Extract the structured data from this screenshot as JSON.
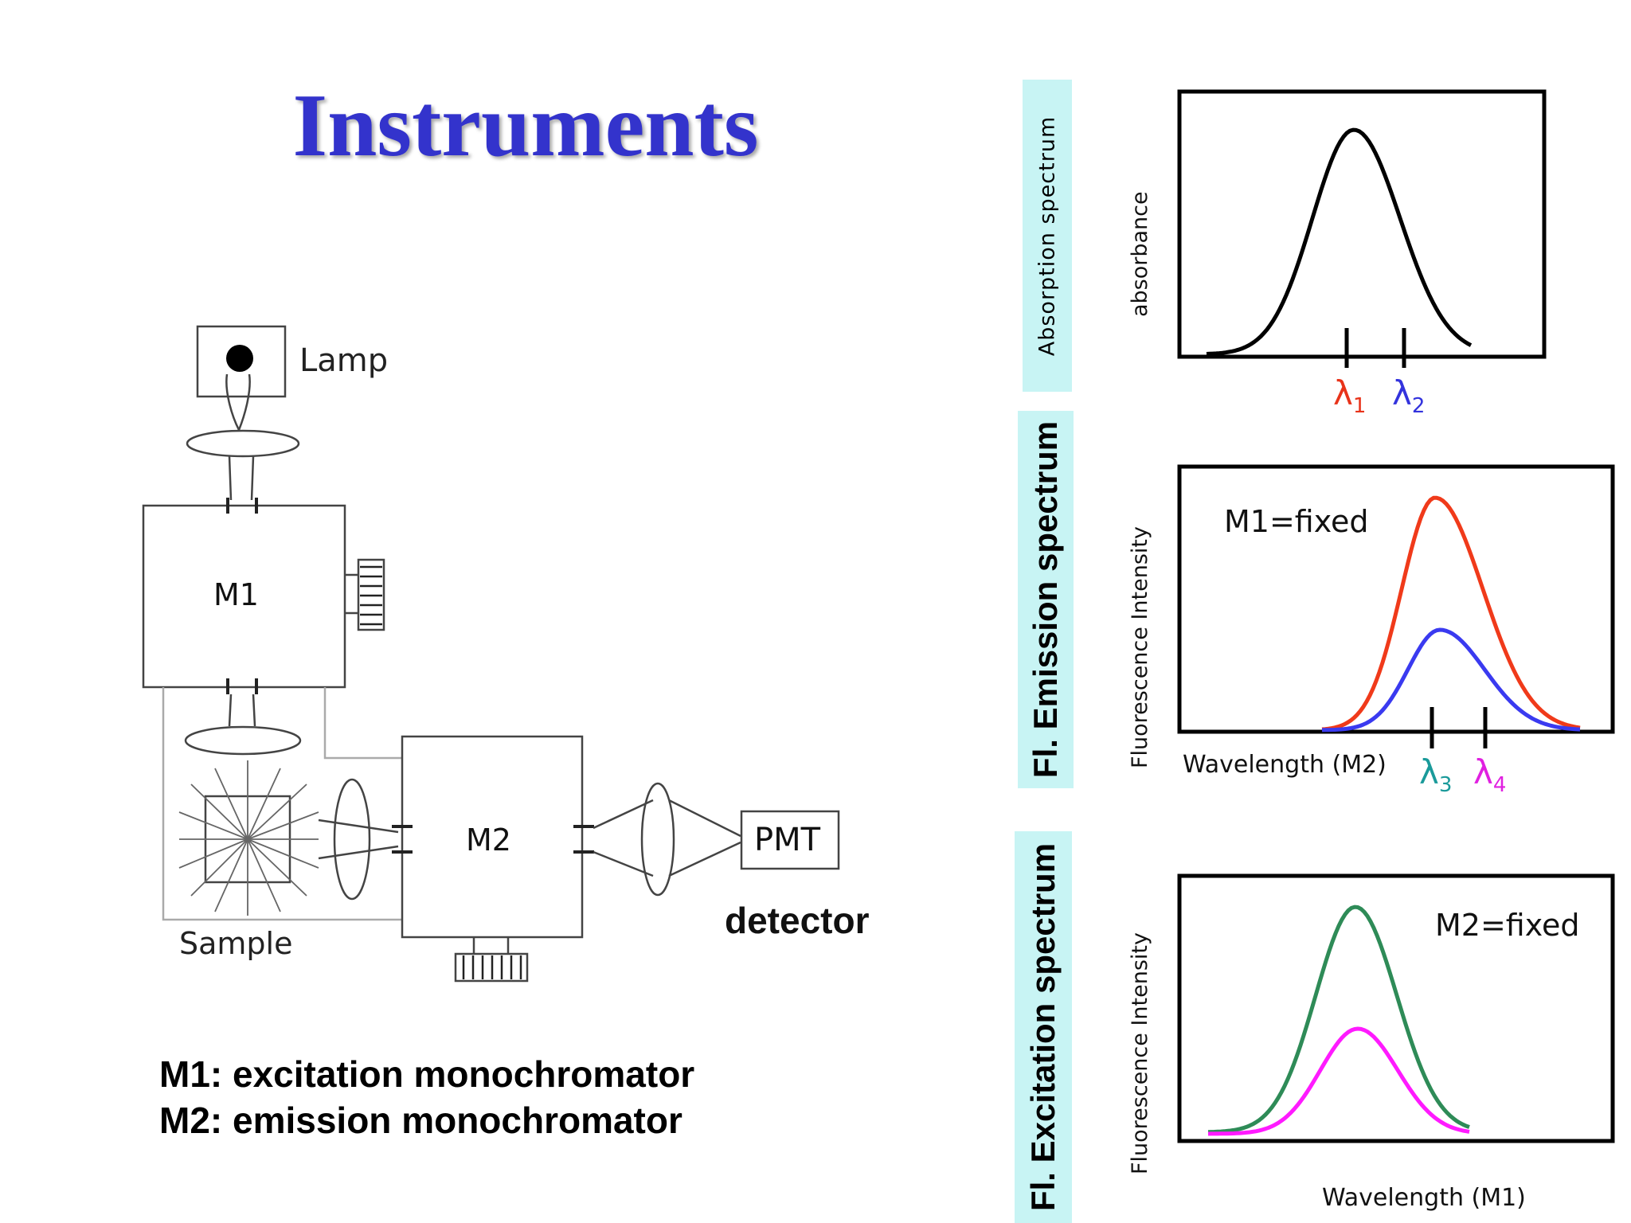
{
  "slide": {
    "title": "Instruments",
    "title_color": "#3333cc"
  },
  "setup": {
    "lamp_label": "Lamp",
    "m1_label": "M1",
    "m2_label": "M2",
    "pmt_label": "PMT",
    "sample_label": "Sample",
    "detector_label": "detector"
  },
  "legend": {
    "m1_line": "M1: excitation monochromator",
    "m2_line": "M2: emission monochromator"
  },
  "panels": {
    "absorption": {
      "tab_label": "Absorption spectrum",
      "ylabel": "absorbance",
      "markers": [
        {
          "sym": "λ",
          "sub": "1",
          "color": "#e8331a"
        },
        {
          "sym": "λ",
          "sub": "2",
          "color": "#3333dd"
        }
      ]
    },
    "emission": {
      "tab_label": "Fl. Emission spectrum",
      "ylabel": "Fluorescence Intensity",
      "xlabel": "Wavelength (M2)",
      "note": "M1=fixed",
      "markers": [
        {
          "sym": "λ",
          "sub": "3",
          "color": "#1a9a9a"
        },
        {
          "sym": "λ",
          "sub": "4",
          "color": "#e020e0"
        }
      ]
    },
    "excitation": {
      "tab_label": "Fl. Excitation spectrum",
      "ylabel": "Fluorescence Intensity",
      "xlabel": "Wavelength (M1)",
      "note": "M2=fixed"
    }
  },
  "colors": {
    "absorption_curve": "#000000",
    "emission_high": "#f03a1a",
    "emission_low": "#3a3af0",
    "excitation_high": "#2e8b57",
    "excitation_low": "#ff1aff",
    "tab_bg": "#c8f4f4"
  }
}
